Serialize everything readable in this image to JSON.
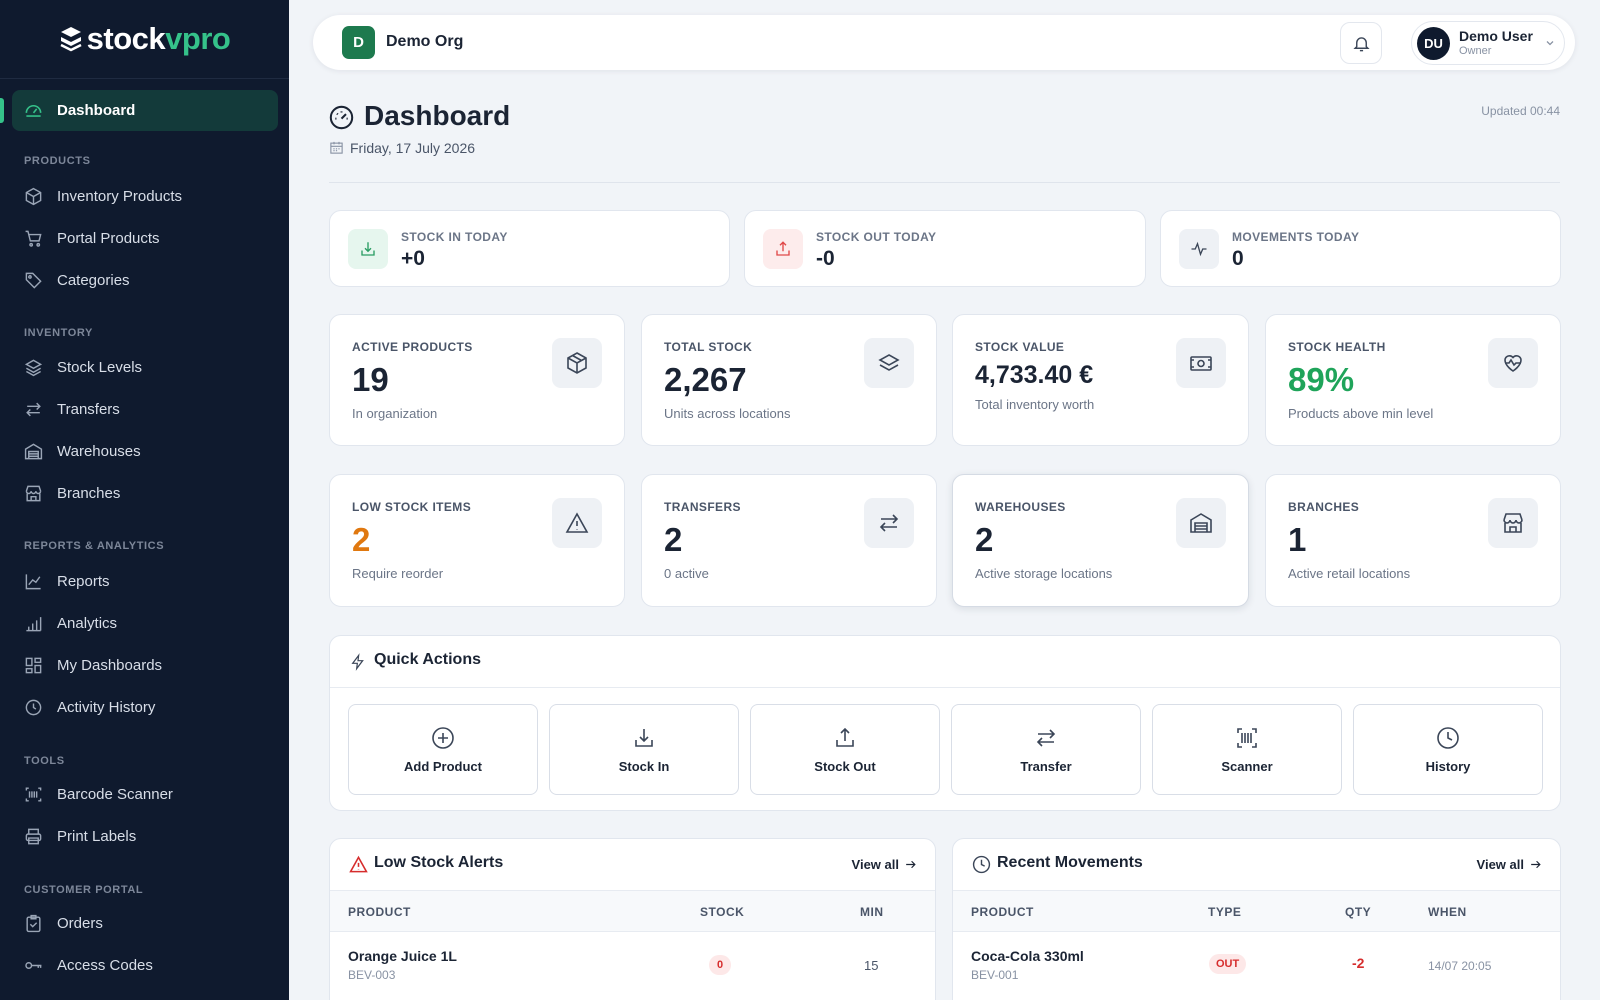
{
  "brand": {
    "logo_main": "stock",
    "logo_accent": "vpro"
  },
  "sidebar": {
    "active": "Dashboard",
    "sections": [
      {
        "title": "PRODUCTS",
        "items": [
          "Inventory Products",
          "Portal Products",
          "Categories"
        ]
      },
      {
        "title": "INVENTORY",
        "items": [
          "Stock Levels",
          "Transfers",
          "Warehouses",
          "Branches"
        ]
      },
      {
        "title": "REPORTS & ANALYTICS",
        "items": [
          "Reports",
          "Analytics",
          "My Dashboards",
          "Activity History"
        ]
      },
      {
        "title": "TOOLS",
        "items": [
          "Barcode Scanner",
          "Print Labels"
        ]
      },
      {
        "title": "CUSTOMER PORTAL",
        "items": [
          "Orders",
          "Access Codes"
        ]
      }
    ]
  },
  "topbar": {
    "org_initial": "D",
    "org_name": "Demo Org",
    "user_initials": "DU",
    "user_name": "Demo User",
    "user_role": "Owner"
  },
  "header": {
    "title": "Dashboard",
    "date": "Friday, 17 July 2026",
    "updated": "Updated 00:44"
  },
  "today": [
    {
      "label": "STOCK IN TODAY",
      "value": "+0",
      "icon": "download-icon",
      "bg": "#e6f6ee",
      "color": "#2a9d63"
    },
    {
      "label": "STOCK OUT TODAY",
      "value": "-0",
      "icon": "upload-icon",
      "bg": "#fdecec",
      "color": "#e04848"
    },
    {
      "label": "MOVEMENTS TODAY",
      "value": "0",
      "icon": "activity-icon",
      "bg": "#eef1f5",
      "color": "#3b4658"
    }
  ],
  "stats": [
    {
      "label": "ACTIVE PRODUCTS",
      "value": "19",
      "sub": "In organization",
      "icon": "box-icon",
      "color": "#1b2434"
    },
    {
      "label": "TOTAL STOCK",
      "value": "2,267",
      "sub": "Units across locations",
      "icon": "layers-icon",
      "color": "#1b2434"
    },
    {
      "label": "STOCK VALUE",
      "value": "4,733.40 €",
      "sub": "Total inventory worth",
      "icon": "banknote-icon",
      "color": "#1b2434"
    },
    {
      "label": "STOCK HEALTH",
      "value": "89%",
      "sub": "Products above min level",
      "icon": "heart-pulse-icon",
      "color": "#1fa45a"
    },
    {
      "label": "LOW STOCK ITEMS",
      "value": "2",
      "sub": "Require reorder",
      "icon": "alert-triangle-icon",
      "color": "#e0780f"
    },
    {
      "label": "TRANSFERS",
      "value": "2",
      "sub": "0 active",
      "icon": "arrows-icon",
      "color": "#1b2434"
    },
    {
      "label": "WAREHOUSES",
      "value": "2",
      "sub": "Active storage locations",
      "icon": "warehouse-icon",
      "color": "#1b2434"
    },
    {
      "label": "BRANCHES",
      "value": "1",
      "sub": "Active retail locations",
      "icon": "store-icon",
      "color": "#1b2434"
    }
  ],
  "quick_actions": {
    "title": "Quick Actions",
    "items": [
      {
        "label": "Add Product",
        "icon": "plus-circle-icon"
      },
      {
        "label": "Stock In",
        "icon": "download-icon"
      },
      {
        "label": "Stock Out",
        "icon": "upload-icon"
      },
      {
        "label": "Transfer",
        "icon": "arrows-icon"
      },
      {
        "label": "Scanner",
        "icon": "barcode-icon"
      },
      {
        "label": "History",
        "icon": "history-icon"
      }
    ]
  },
  "low_stock": {
    "title": "Low Stock Alerts",
    "link": "View all",
    "columns": [
      "PRODUCT",
      "STOCK",
      "MIN"
    ],
    "rows": [
      {
        "name": "Orange Juice 1L",
        "sku": "BEV-003",
        "stock": "0",
        "min": "15"
      }
    ]
  },
  "movements": {
    "title": "Recent Movements",
    "link": "View all",
    "columns": [
      "PRODUCT",
      "TYPE",
      "QTY",
      "WHEN"
    ],
    "rows": [
      {
        "name": "Coca-Cola 330ml",
        "sku": "BEV-001",
        "type": "OUT",
        "qty": "-2",
        "when": "14/07 20:05"
      }
    ]
  },
  "colors": {
    "sidebar_bg": "#0f1a2e",
    "accent": "#35c28a",
    "danger": "#d62d2d"
  }
}
